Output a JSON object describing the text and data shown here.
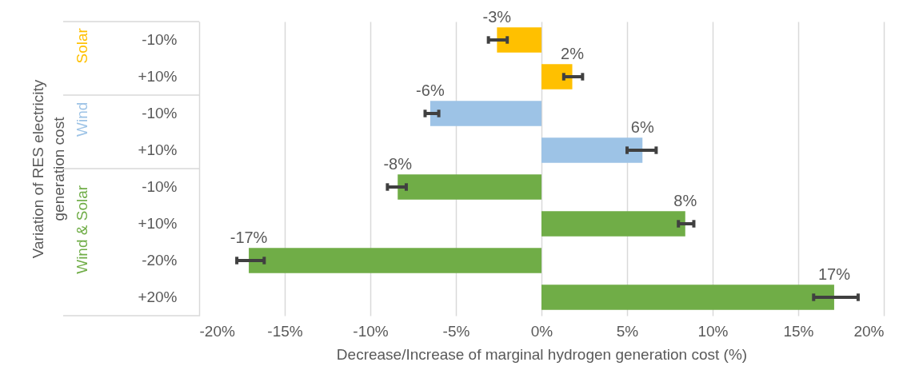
{
  "chart_data": {
    "type": "bar",
    "orientation": "horizontal",
    "xlabel": "Decrease/Increase of marginal hydrogen generation cost (%)",
    "ylabel": "Variation of RES electricity generation cost",
    "categories": [
      "-10%",
      "+10%",
      "-10%",
      "+10%",
      "-10%",
      "+10%",
      "-20%",
      "+20%"
    ],
    "series": [
      {
        "name": "Solar",
        "color": "#ffc000",
        "values": [
          -2.6,
          1.8,
          null,
          null,
          null,
          null,
          null,
          null
        ],
        "errors": [
          [
            -3.1,
            -2.0
          ],
          [
            1.3,
            2.4
          ],
          null,
          null,
          null,
          null,
          null,
          null
        ],
        "value_labels": [
          "-3%",
          "2%",
          null,
          null,
          null,
          null,
          null,
          null
        ]
      },
      {
        "name": "Wind",
        "color": "#9dc3e6",
        "values": [
          null,
          null,
          -6.5,
          5.9,
          null,
          null,
          null,
          null
        ],
        "errors": [
          null,
          null,
          [
            -6.8,
            -6.0
          ],
          [
            5.0,
            6.7
          ],
          null,
          null,
          null,
          null
        ],
        "value_labels": [
          null,
          null,
          "-6%",
          "6%",
          null,
          null,
          null,
          null
        ]
      },
      {
        "name": "Wind & Solar",
        "color": "#70ad47",
        "values": [
          null,
          null,
          null,
          null,
          -8.4,
          8.4,
          -17.1,
          17.1
        ],
        "errors": [
          null,
          null,
          null,
          null,
          [
            -9.0,
            -7.9
          ],
          [
            8.0,
            8.9
          ],
          [
            -17.8,
            -16.2
          ],
          [
            15.9,
            18.5
          ]
        ],
        "value_labels": [
          null,
          null,
          null,
          null,
          "-8%",
          "8%",
          "-17%",
          "17%"
        ]
      }
    ],
    "xlim": [
      -20,
      20
    ],
    "xticks": [
      {
        "value": -20,
        "label": "-20%"
      },
      {
        "value": -15,
        "label": "-15%"
      },
      {
        "value": -10,
        "label": "-10%"
      },
      {
        "value": -5,
        "label": "-5%"
      },
      {
        "value": 0,
        "label": "0%"
      },
      {
        "value": 5,
        "label": "5%"
      },
      {
        "value": 10,
        "label": "10%"
      },
      {
        "value": 15,
        "label": "15%"
      },
      {
        "value": 20,
        "label": "20%"
      }
    ],
    "grid": "x",
    "legend": false
  }
}
